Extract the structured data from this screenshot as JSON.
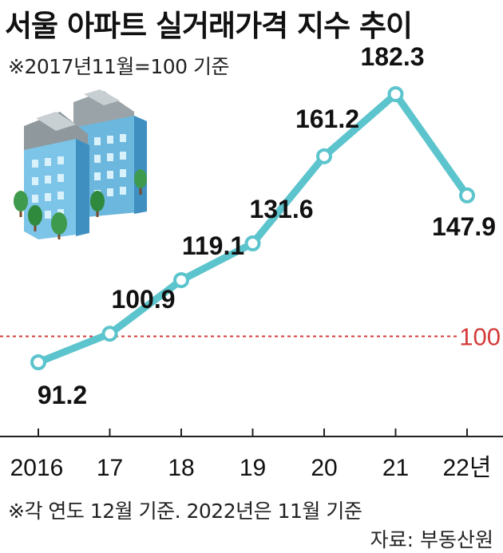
{
  "header": {
    "title": "서울 아파트 실거래가격 지수 추이",
    "subtitle": "※2017년11월=100 기준"
  },
  "footer": {
    "note": "※각 연도 12월 기준. 2022년은 11월 기준",
    "source": "자료: 부동산원"
  },
  "colors": {
    "line": "#5bc4cc",
    "reference": "#d43a3a",
    "axis": "#222222"
  },
  "chart_data": {
    "type": "line",
    "categories": [
      "2016",
      "17",
      "18",
      "19",
      "20",
      "21",
      "22년"
    ],
    "values": [
      91.2,
      100.9,
      119.1,
      131.6,
      161.2,
      182.3,
      147.9
    ],
    "labels": [
      "91.2",
      "100.9",
      "119.1",
      "131.6",
      "161.2",
      "182.3",
      "147.9"
    ],
    "reference_value": 100,
    "reference_label": "100",
    "grid": false,
    "legend": "none"
  }
}
